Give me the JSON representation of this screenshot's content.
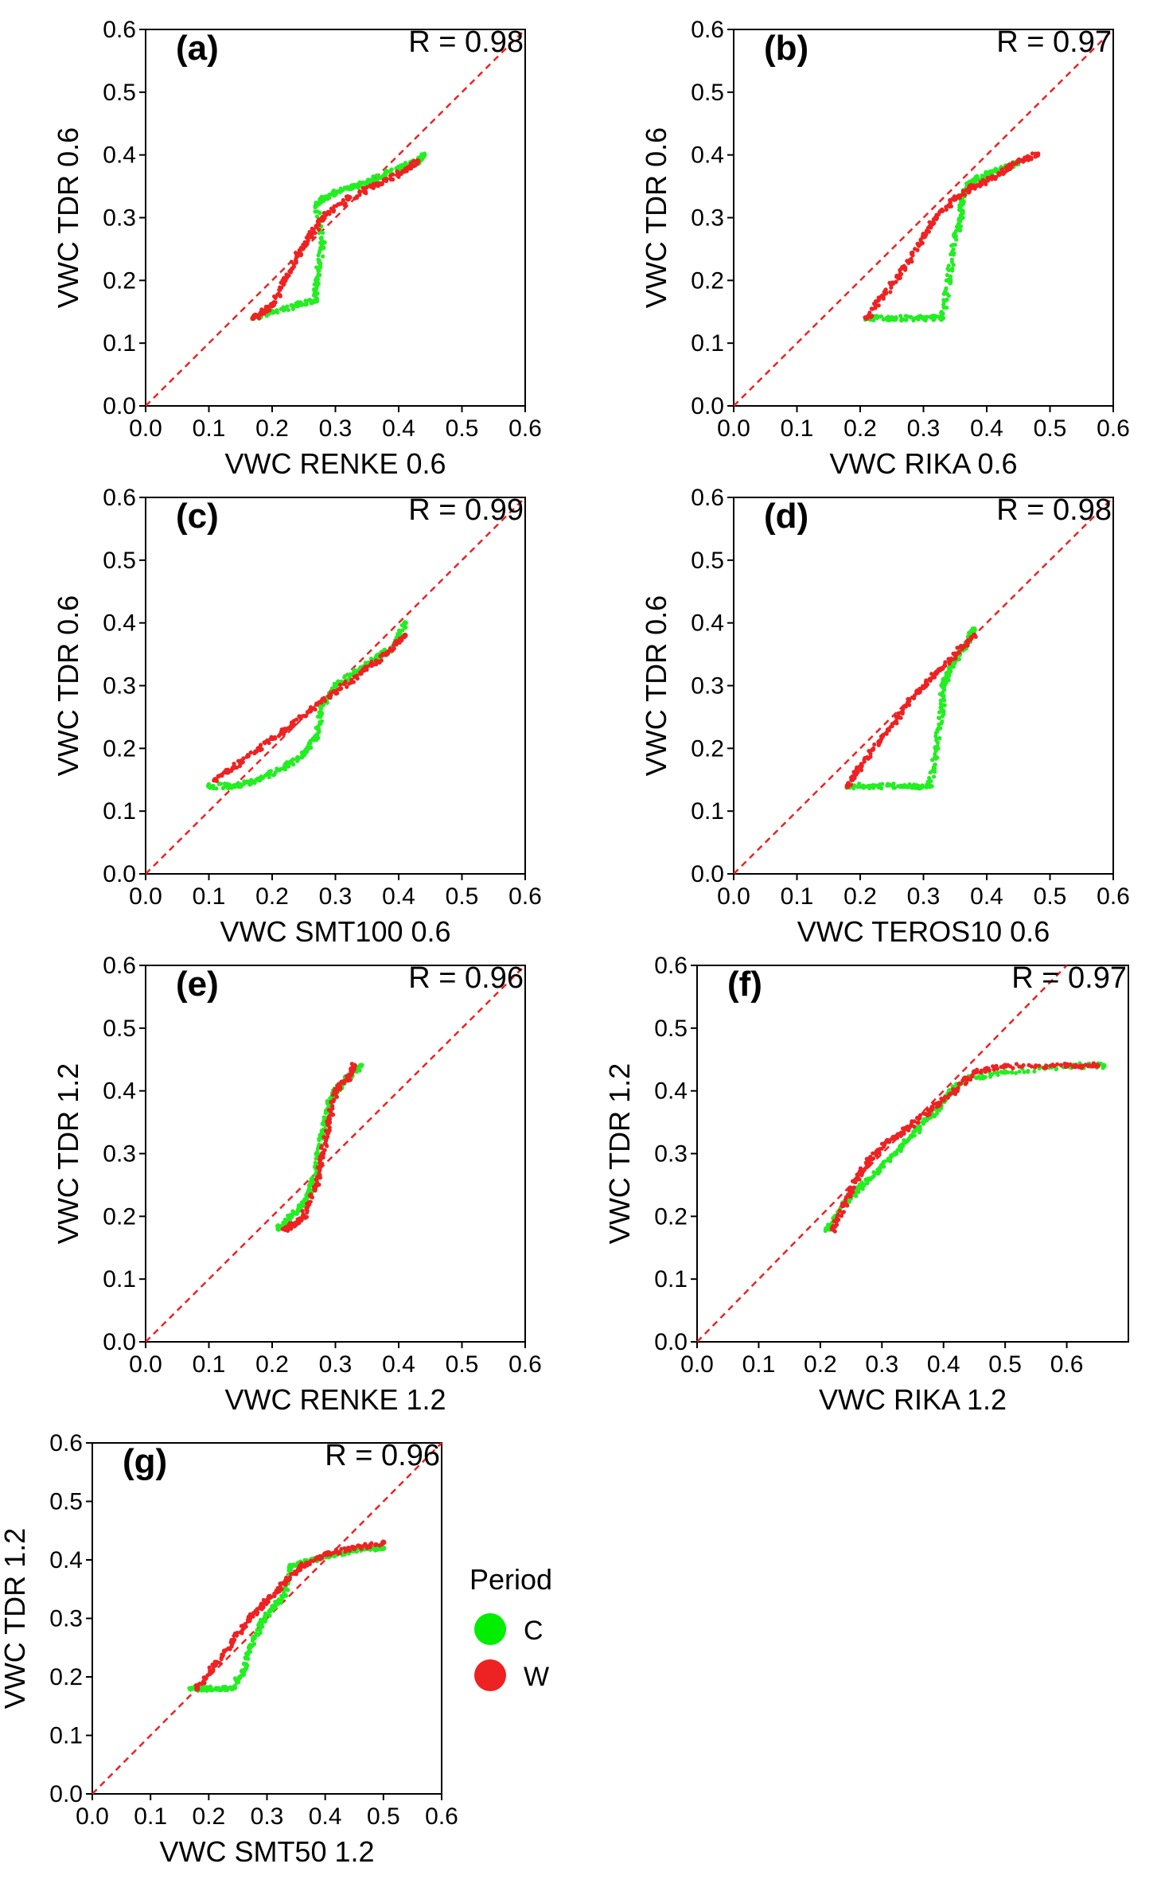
{
  "chart_data": [
    {
      "type": "scatter",
      "panel": "(a)",
      "r_label": "R = 0.98",
      "xlabel": "VWC RENKE 0.6",
      "ylabel": "VWC TDR 0.6",
      "xlim": [
        0,
        0.6
      ],
      "ylim": [
        0,
        0.6
      ],
      "xticks": [
        "0.0",
        "0.1",
        "0.2",
        "0.3",
        "0.4",
        "0.5",
        "0.6"
      ],
      "yticks": [
        "0.0",
        "0.1",
        "0.2",
        "0.3",
        "0.4",
        "0.5",
        "0.6"
      ],
      "series": [
        {
          "name": "C",
          "x": [
            0.17,
            0.2,
            0.24,
            0.27,
            0.27,
            0.28,
            0.27,
            0.28,
            0.3,
            0.33,
            0.36,
            0.4,
            0.43,
            0.44
          ],
          "y": [
            0.14,
            0.15,
            0.16,
            0.17,
            0.2,
            0.26,
            0.32,
            0.33,
            0.34,
            0.35,
            0.36,
            0.38,
            0.39,
            0.4
          ]
        },
        {
          "name": "W",
          "x": [
            0.17,
            0.2,
            0.22,
            0.24,
            0.26,
            0.28,
            0.32,
            0.36,
            0.4,
            0.43
          ],
          "y": [
            0.14,
            0.16,
            0.2,
            0.24,
            0.27,
            0.3,
            0.33,
            0.35,
            0.37,
            0.39
          ]
        }
      ]
    },
    {
      "type": "scatter",
      "panel": "(b)",
      "r_label": "R = 0.97",
      "xlabel": "VWC RIKA 0.6",
      "ylabel": "VWC TDR 0.6",
      "xlim": [
        0,
        0.6
      ],
      "ylim": [
        0,
        0.6
      ],
      "xticks": [
        "0.0",
        "0.1",
        "0.2",
        "0.3",
        "0.4",
        "0.5",
        "0.6"
      ],
      "yticks": [
        "0.0",
        "0.1",
        "0.2",
        "0.3",
        "0.4",
        "0.5",
        "0.6"
      ],
      "series": [
        {
          "name": "C",
          "x": [
            0.21,
            0.25,
            0.3,
            0.33,
            0.34,
            0.35,
            0.36,
            0.36,
            0.37,
            0.38,
            0.4,
            0.43,
            0.45
          ],
          "y": [
            0.14,
            0.14,
            0.14,
            0.14,
            0.2,
            0.27,
            0.3,
            0.33,
            0.35,
            0.36,
            0.37,
            0.38,
            0.39
          ]
        },
        {
          "name": "W",
          "x": [
            0.21,
            0.24,
            0.27,
            0.3,
            0.32,
            0.35,
            0.38,
            0.42,
            0.45,
            0.48
          ],
          "y": [
            0.14,
            0.18,
            0.22,
            0.27,
            0.3,
            0.33,
            0.35,
            0.37,
            0.39,
            0.4
          ]
        }
      ]
    },
    {
      "type": "scatter",
      "panel": "(c)",
      "r_label": "R = 0.99",
      "xlabel": "VWC SMT100 0.6",
      "ylabel": "VWC TDR 0.6",
      "xlim": [
        0,
        0.6
      ],
      "ylim": [
        0,
        0.6
      ],
      "xticks": [
        "0.0",
        "0.1",
        "0.2",
        "0.3",
        "0.4",
        "0.5",
        "0.6"
      ],
      "yticks": [
        "0.0",
        "0.1",
        "0.2",
        "0.3",
        "0.4",
        "0.5",
        "0.6"
      ],
      "series": [
        {
          "name": "C",
          "x": [
            0.1,
            0.14,
            0.18,
            0.22,
            0.25,
            0.27,
            0.28,
            0.3,
            0.33,
            0.36,
            0.39,
            0.41
          ],
          "y": [
            0.14,
            0.14,
            0.15,
            0.17,
            0.19,
            0.22,
            0.27,
            0.3,
            0.32,
            0.34,
            0.36,
            0.4
          ]
        },
        {
          "name": "W",
          "x": [
            0.11,
            0.14,
            0.18,
            0.22,
            0.26,
            0.3,
            0.34,
            0.38,
            0.41
          ],
          "y": [
            0.15,
            0.17,
            0.2,
            0.23,
            0.26,
            0.29,
            0.32,
            0.35,
            0.38
          ]
        }
      ]
    },
    {
      "type": "scatter",
      "panel": "(d)",
      "r_label": "R = 0.98",
      "xlabel": "VWC TEROS10 0.6",
      "ylabel": "VWC TDR 0.6",
      "xlim": [
        0,
        0.6
      ],
      "ylim": [
        0,
        0.6
      ],
      "xticks": [
        "0.0",
        "0.1",
        "0.2",
        "0.3",
        "0.4",
        "0.5",
        "0.6"
      ],
      "yticks": [
        "0.0",
        "0.1",
        "0.2",
        "0.3",
        "0.4",
        "0.5",
        "0.6"
      ],
      "series": [
        {
          "name": "C",
          "x": [
            0.18,
            0.22,
            0.27,
            0.31,
            0.32,
            0.33,
            0.33,
            0.34,
            0.35,
            0.37,
            0.38
          ],
          "y": [
            0.14,
            0.14,
            0.14,
            0.14,
            0.2,
            0.26,
            0.3,
            0.32,
            0.34,
            0.37,
            0.39
          ]
        },
        {
          "name": "W",
          "x": [
            0.18,
            0.2,
            0.23,
            0.26,
            0.29,
            0.32,
            0.35,
            0.38
          ],
          "y": [
            0.14,
            0.17,
            0.21,
            0.25,
            0.29,
            0.32,
            0.35,
            0.38
          ]
        }
      ]
    },
    {
      "type": "scatter",
      "panel": "(e)",
      "r_label": "R = 0.96",
      "xlabel": "VWC RENKE 1.2",
      "ylabel": "VWC TDR 1.2",
      "xlim": [
        0,
        0.6
      ],
      "ylim": [
        0,
        0.6
      ],
      "xticks": [
        "0.0",
        "0.1",
        "0.2",
        "0.3",
        "0.4",
        "0.5",
        "0.6"
      ],
      "yticks": [
        "0.0",
        "0.1",
        "0.2",
        "0.3",
        "0.4",
        "0.5",
        "0.6"
      ],
      "series": [
        {
          "name": "C",
          "x": [
            0.21,
            0.23,
            0.25,
            0.26,
            0.27,
            0.28,
            0.29,
            0.3,
            0.32,
            0.34
          ],
          "y": [
            0.18,
            0.2,
            0.22,
            0.24,
            0.28,
            0.33,
            0.38,
            0.4,
            0.42,
            0.44
          ]
        },
        {
          "name": "W",
          "x": [
            0.22,
            0.24,
            0.25,
            0.27,
            0.28,
            0.29,
            0.3,
            0.32,
            0.33
          ],
          "y": [
            0.18,
            0.19,
            0.2,
            0.25,
            0.3,
            0.35,
            0.4,
            0.42,
            0.44
          ]
        }
      ]
    },
    {
      "type": "scatter",
      "panel": "(f)",
      "r_label": "R = 0.97",
      "xlabel": "VWC RIKA 1.2",
      "ylabel": "VWC TDR 1.2",
      "xlim": [
        0,
        0.7
      ],
      "ylim": [
        0,
        0.6
      ],
      "xticks": [
        "0.0",
        "0.1",
        "0.2",
        "0.3",
        "0.4",
        "0.5",
        "0.6"
      ],
      "yticks": [
        "0.0",
        "0.1",
        "0.2",
        "0.3",
        "0.4",
        "0.5",
        "0.6"
      ],
      "series": [
        {
          "name": "C",
          "x": [
            0.21,
            0.24,
            0.27,
            0.3,
            0.33,
            0.36,
            0.39,
            0.41,
            0.44,
            0.5,
            0.6,
            0.66
          ],
          "y": [
            0.18,
            0.22,
            0.25,
            0.28,
            0.31,
            0.34,
            0.37,
            0.4,
            0.42,
            0.43,
            0.44,
            0.44
          ]
        },
        {
          "name": "W",
          "x": [
            0.22,
            0.24,
            0.26,
            0.28,
            0.31,
            0.34,
            0.38,
            0.42,
            0.45,
            0.5,
            0.6,
            0.65
          ],
          "y": [
            0.18,
            0.22,
            0.26,
            0.29,
            0.32,
            0.34,
            0.37,
            0.4,
            0.43,
            0.44,
            0.44,
            0.44
          ]
        }
      ]
    },
    {
      "type": "scatter",
      "panel": "(g)",
      "r_label": "R = 0.96",
      "xlabel": "VWC SMT50 1.2",
      "ylabel": "VWC TDR 1.2",
      "xlim": [
        0,
        0.6
      ],
      "ylim": [
        0,
        0.6
      ],
      "xticks": [
        "0.0",
        "0.1",
        "0.2",
        "0.3",
        "0.4",
        "0.5",
        "0.6"
      ],
      "yticks": [
        "0.0",
        "0.1",
        "0.2",
        "0.3",
        "0.4",
        "0.5",
        "0.6"
      ],
      "series": [
        {
          "name": "C",
          "x": [
            0.17,
            0.2,
            0.24,
            0.26,
            0.27,
            0.29,
            0.31,
            0.33,
            0.34,
            0.38,
            0.42,
            0.47,
            0.5
          ],
          "y": [
            0.18,
            0.18,
            0.18,
            0.21,
            0.25,
            0.29,
            0.32,
            0.34,
            0.39,
            0.4,
            0.41,
            0.42,
            0.42
          ]
        },
        {
          "name": "W",
          "x": [
            0.18,
            0.21,
            0.24,
            0.27,
            0.3,
            0.33,
            0.36,
            0.4,
            0.45,
            0.5
          ],
          "y": [
            0.18,
            0.22,
            0.26,
            0.3,
            0.33,
            0.36,
            0.39,
            0.41,
            0.42,
            0.43
          ]
        }
      ]
    }
  ],
  "legend": {
    "title": "Period",
    "items": [
      {
        "label": "C",
        "color": "#00ee00"
      },
      {
        "label": "W",
        "color": "#ee2222"
      }
    ]
  },
  "colors": {
    "C": "#22ee22",
    "W": "#ee2222",
    "identity_line": "#ee2222"
  }
}
